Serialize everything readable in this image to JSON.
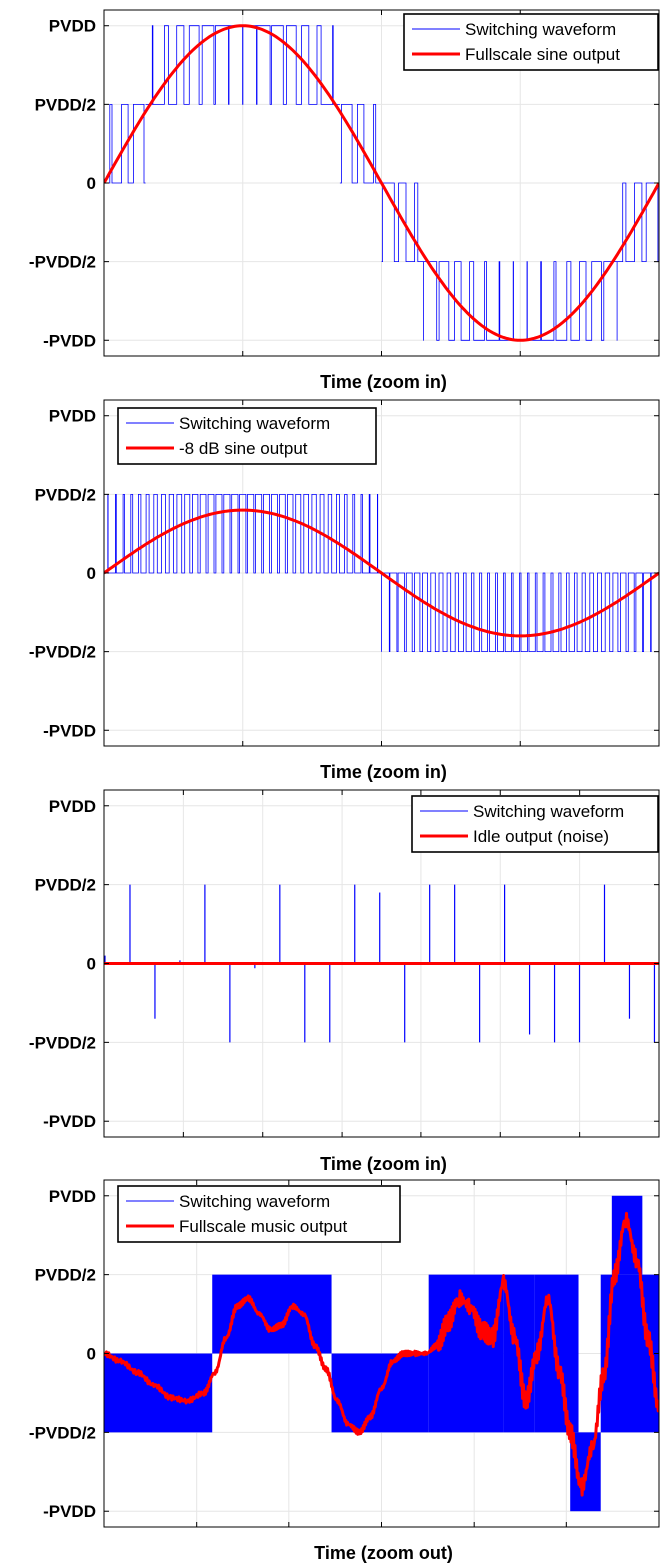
{
  "colors": {
    "switching": "#0000ff",
    "output": "#ff0000",
    "grid": "#e6e6e6",
    "axis": "#000000"
  },
  "ytick_labels": [
    "PVDD",
    "PVDD/2",
    "0",
    "-PVDD/2",
    "-PVDD"
  ],
  "chart_data": [
    {
      "type": "line",
      "xlabel": "Time (zoom in)",
      "ylabel": "",
      "ylim": [
        -1.1,
        1.1
      ],
      "yticks": [
        1,
        0.5,
        0,
        -0.5,
        -1
      ],
      "xlim": [
        0,
        1
      ],
      "xticks": [
        0.25,
        0.5,
        0.75
      ],
      "grid": true,
      "legend_position": "top-right",
      "series": [
        {
          "name": "Switching waveform",
          "color": "#0000ff",
          "kind": "pwm",
          "levels": [
            -1,
            -0.5,
            0,
            0.5,
            1
          ],
          "switch_cycles": 40
        },
        {
          "name": "Fullscale sine output",
          "color": "#ff0000",
          "amplitude": 1.0,
          "cycles": 1
        }
      ]
    },
    {
      "type": "line",
      "xlabel": "Time (zoom in)",
      "ylabel": "",
      "ylim": [
        -1.1,
        1.1
      ],
      "yticks": [
        1,
        0.5,
        0,
        -0.5,
        -1
      ],
      "xlim": [
        0,
        1
      ],
      "xticks": [
        0.25,
        0.5,
        0.75
      ],
      "grid": true,
      "legend_position": "top-left",
      "series": [
        {
          "name": "Switching waveform",
          "color": "#0000ff",
          "kind": "pwm",
          "levels": [
            -0.5,
            0,
            0.5
          ],
          "switch_cycles": 70
        },
        {
          "name": "-8 dB sine output",
          "color": "#ff0000",
          "amplitude": 0.4,
          "cycles": 1
        }
      ]
    },
    {
      "type": "line",
      "xlabel": "Time (zoom in)",
      "ylabel": "",
      "ylim": [
        -1.1,
        1.1
      ],
      "yticks": [
        1,
        0.5,
        0,
        -0.5,
        -1
      ],
      "xlim": [
        0,
        1
      ],
      "xticks": [
        0.143,
        0.286,
        0.429,
        0.571,
        0.714,
        0.857
      ],
      "grid": true,
      "legend_position": "top-right",
      "series": [
        {
          "name": "Switching waveform",
          "color": "#0000ff",
          "kind": "spikes",
          "spikes": [
            {
              "x": 0.0,
              "y": 0.05
            },
            {
              "x": 0.045,
              "y": 0.5
            },
            {
              "x": 0.09,
              "y": -0.35
            },
            {
              "x": 0.135,
              "y": 0.02
            },
            {
              "x": 0.18,
              "y": 0.5
            },
            {
              "x": 0.225,
              "y": -0.5
            },
            {
              "x": 0.27,
              "y": -0.03
            },
            {
              "x": 0.315,
              "y": 0.5
            },
            {
              "x": 0.36,
              "y": -0.5
            },
            {
              "x": 0.405,
              "y": -0.5
            },
            {
              "x": 0.45,
              "y": 0.5
            },
            {
              "x": 0.495,
              "y": 0.45
            },
            {
              "x": 0.54,
              "y": -0.5
            },
            {
              "x": 0.585,
              "y": 0.5
            },
            {
              "x": 0.63,
              "y": 0.5
            },
            {
              "x": 0.675,
              "y": -0.5
            },
            {
              "x": 0.72,
              "y": 0.5
            },
            {
              "x": 0.765,
              "y": -0.45
            },
            {
              "x": 0.81,
              "y": -0.5
            },
            {
              "x": 0.855,
              "y": -0.5
            },
            {
              "x": 0.9,
              "y": 0.5
            },
            {
              "x": 0.945,
              "y": -0.35
            },
            {
              "x": 0.99,
              "y": -0.5
            }
          ]
        },
        {
          "name": "Idle output (noise)",
          "color": "#ff0000",
          "amplitude": 0,
          "cycles": 0
        }
      ]
    },
    {
      "type": "line",
      "xlabel": "Time (zoom out)",
      "ylabel": "",
      "ylim": [
        -1.1,
        1.1
      ],
      "yticks": [
        1,
        0.5,
        0,
        -0.5,
        -1
      ],
      "xlim": [
        0,
        1
      ],
      "xticks": [
        0.167,
        0.333,
        0.5,
        0.667,
        0.833
      ],
      "grid": true,
      "legend_position": "top-left",
      "series": [
        {
          "name": "Switching waveform",
          "color": "#0000ff",
          "kind": "blocks",
          "blocks": [
            {
              "x0": 0.0,
              "x1": 0.195,
              "lo": -0.5,
              "hi": 0
            },
            {
              "x0": 0.195,
              "x1": 0.41,
              "lo": 0,
              "hi": 0.5
            },
            {
              "x0": 0.41,
              "x1": 0.585,
              "lo": -0.5,
              "hi": 0
            },
            {
              "x0": 0.585,
              "x1": 0.72,
              "lo": -0.5,
              "hi": 0.5
            },
            {
              "x0": 0.72,
              "x1": 0.775,
              "lo": -0.5,
              "hi": 0.5
            },
            {
              "x0": 0.775,
              "x1": 0.855,
              "lo": -0.5,
              "hi": 0.5
            },
            {
              "x0": 0.84,
              "x1": 0.895,
              "lo": -1,
              "hi": -0.5
            },
            {
              "x0": 0.915,
              "x1": 0.97,
              "lo": 0.5,
              "hi": 1
            },
            {
              "x0": 0.895,
              "x1": 1.0,
              "lo": -0.5,
              "hi": 0.5
            }
          ]
        },
        {
          "name": "Fullscale music output",
          "color": "#ff0000",
          "x": [
            0,
            0.03,
            0.06,
            0.09,
            0.12,
            0.15,
            0.18,
            0.2,
            0.22,
            0.24,
            0.26,
            0.28,
            0.3,
            0.32,
            0.34,
            0.36,
            0.38,
            0.4,
            0.42,
            0.44,
            0.46,
            0.48,
            0.5,
            0.52,
            0.54,
            0.56,
            0.58,
            0.6,
            0.62,
            0.64,
            0.66,
            0.68,
            0.7,
            0.72,
            0.74,
            0.76,
            0.78,
            0.8,
            0.82,
            0.84,
            0.86,
            0.88,
            0.9,
            0.92,
            0.94,
            0.96,
            0.98,
            1.0
          ],
          "y": [
            0,
            -0.05,
            -0.12,
            -0.2,
            -0.28,
            -0.3,
            -0.25,
            -0.12,
            0.1,
            0.3,
            0.35,
            0.25,
            0.15,
            0.18,
            0.3,
            0.25,
            0.05,
            -0.1,
            -0.3,
            -0.45,
            -0.5,
            -0.4,
            -0.22,
            -0.05,
            0.0,
            0.0,
            0.0,
            0.05,
            0.2,
            0.35,
            0.3,
            0.15,
            0.1,
            0.45,
            0.1,
            -0.3,
            0.0,
            0.35,
            -0.1,
            -0.5,
            -0.85,
            -0.6,
            -0.15,
            0.5,
            0.85,
            0.6,
            0.1,
            -0.35
          ]
        }
      ]
    }
  ]
}
